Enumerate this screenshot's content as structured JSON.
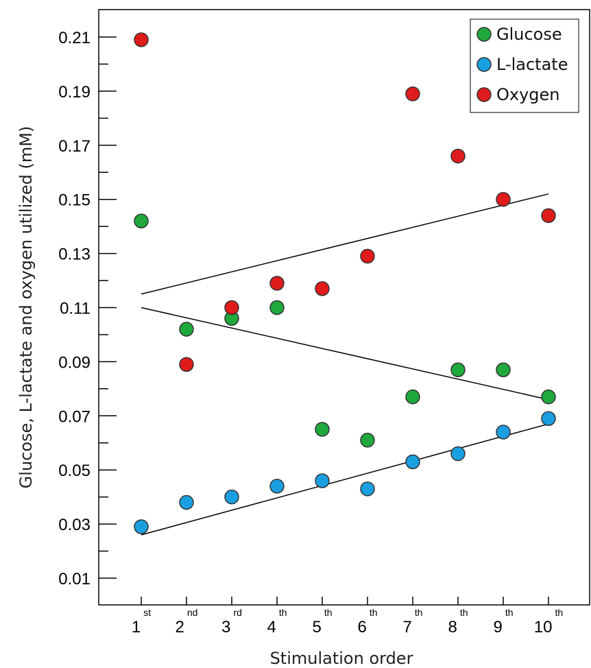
{
  "chart_data": {
    "type": "scatter",
    "xlabel": "Stimulation order",
    "ylabel": "Glucose, L-lactate and oxygen utilized (mM)",
    "ylim": [
      0,
      0.22
    ],
    "y_ticks": [
      "0.01",
      "0.03",
      "0.05",
      "0.07",
      "0.09",
      "0.11",
      "0.13",
      "0.15",
      "0.17",
      "0.19",
      "0.21"
    ],
    "x_categories": [
      {
        "num": "1",
        "sup": "st"
      },
      {
        "num": "2",
        "sup": "nd"
      },
      {
        "num": "3",
        "sup": "rd"
      },
      {
        "num": "4",
        "sup": "th"
      },
      {
        "num": "5",
        "sup": "th"
      },
      {
        "num": "6",
        "sup": "th"
      },
      {
        "num": "7",
        "sup": "th"
      },
      {
        "num": "8",
        "sup": "th"
      },
      {
        "num": "9",
        "sup": "th"
      },
      {
        "num": "10",
        "sup": "th"
      }
    ],
    "legend_position": "top-right",
    "series": [
      {
        "name": "Glucose",
        "color": "#1fa83c",
        "values": [
          0.142,
          0.102,
          0.106,
          0.11,
          0.065,
          0.061,
          0.077,
          0.087,
          0.087,
          0.077
        ]
      },
      {
        "name": "L-lactate",
        "color": "#1a9fe0",
        "values": [
          0.029,
          0.038,
          0.04,
          0.044,
          0.046,
          0.043,
          0.053,
          0.056,
          0.064,
          0.069
        ]
      },
      {
        "name": "Oxygen",
        "color": "#e01b1b",
        "values": [
          0.209,
          0.089,
          0.11,
          0.119,
          0.117,
          0.129,
          0.189,
          0.166,
          0.15,
          0.144
        ]
      }
    ],
    "trendlines": [
      {
        "series": "Oxygen",
        "from": [
          1,
          0.115
        ],
        "to": [
          10,
          0.152
        ]
      },
      {
        "series": "Glucose",
        "from": [
          1,
          0.11
        ],
        "to": [
          10,
          0.076
        ]
      },
      {
        "series": "L-lactate",
        "from": [
          1,
          0.026
        ],
        "to": [
          10,
          0.067
        ]
      }
    ]
  }
}
